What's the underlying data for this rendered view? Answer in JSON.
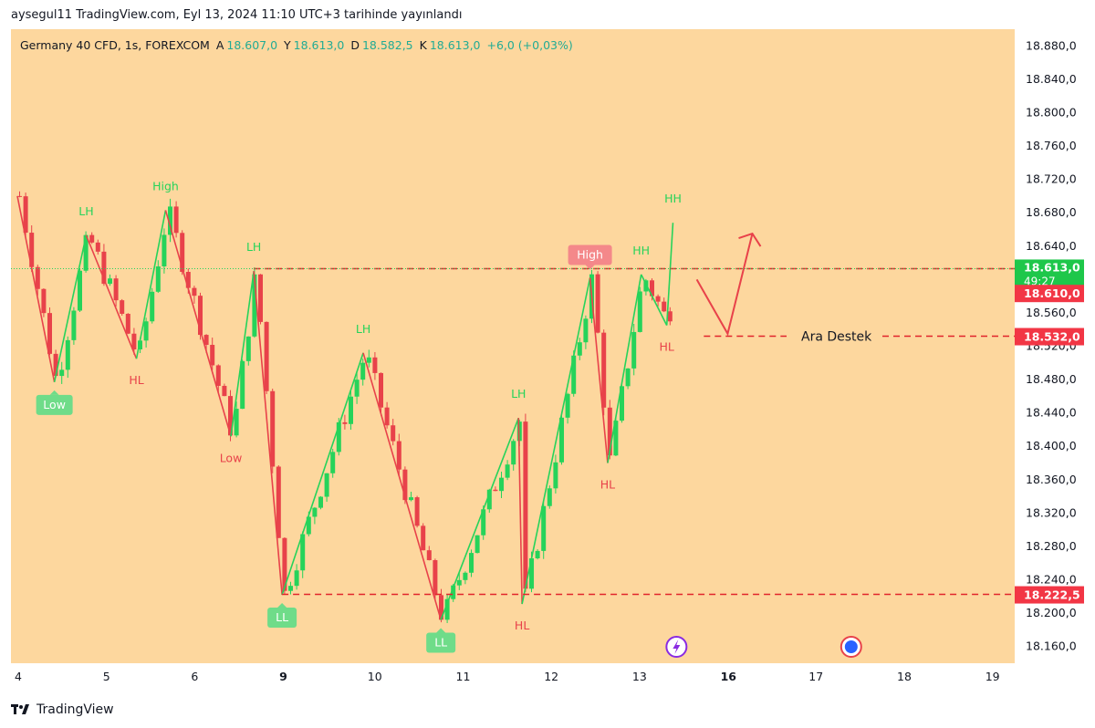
{
  "header": {
    "published": "aysegul11 TradingView.com, Eyl 13, 2024 11:10 UTC+3 tarihinde yayınlandı"
  },
  "legend": {
    "symbol": "Germany 40 CFD, 1s, FOREXCOM",
    "open_label": "A",
    "open": "18.607,0",
    "high_label": "Y",
    "high": "18.613,0",
    "low_label": "D",
    "low": "18.582,5",
    "close_label": "K",
    "close": "18.613,0",
    "change": "+6,0 (+0,03%)"
  },
  "footer": {
    "brand": "TradingView"
  },
  "colors": {
    "background": "#fdd79e",
    "up": "#26d35a",
    "down": "#e8424a",
    "grid_text": "#131722",
    "level_line": "#e0242b",
    "price_badge_green": "#1ec74a",
    "price_badge_red": "#f23645",
    "accent_purple": "#8a2be2",
    "accent_blue": "#2962ff"
  },
  "chart_data": {
    "type": "candlestick",
    "title": "Germany 40 CFD, 1s, FOREXCOM",
    "xlabel": "",
    "ylabel": "",
    "grid": false,
    "x_ticks": [
      "4",
      "5",
      "6",
      "9",
      "10",
      "11",
      "12",
      "13",
      "16",
      "17",
      "18",
      "19"
    ],
    "y_ticks": [
      "18.160,0",
      "18.200,0",
      "18.240,0",
      "18.280,0",
      "18.320,0",
      "18.360,0",
      "18.400,0",
      "18.440,0",
      "18.480,0",
      "18.520,0",
      "18.560,0",
      "18.600,0",
      "18.640,0",
      "18.680,0",
      "18.720,0",
      "18.760,0",
      "18.800,0",
      "18.840,0",
      "18.880,0"
    ],
    "ylim": [
      18140,
      18900
    ],
    "zigzag": [
      {
        "x": 0.0,
        "y": 18700,
        "c": "down"
      },
      {
        "x": 0.42,
        "y": 18477,
        "c": "up",
        "label": "Low",
        "tag": true
      },
      {
        "x": 0.78,
        "y": 18653,
        "c": "down",
        "label": "LH"
      },
      {
        "x": 1.35,
        "y": 18505,
        "c": "up",
        "label": "HL"
      },
      {
        "x": 1.68,
        "y": 18683,
        "c": "down",
        "label": "High"
      },
      {
        "x": 2.42,
        "y": 18412,
        "c": "up",
        "label": "Low"
      },
      {
        "x": 2.68,
        "y": 18610,
        "c": "down",
        "label": "LH"
      },
      {
        "x": 3.0,
        "y": 18222,
        "c": "up",
        "label": "LL",
        "tag": true
      },
      {
        "x": 3.92,
        "y": 18512,
        "c": "down",
        "label": "LH"
      },
      {
        "x": 4.8,
        "y": 18192,
        "c": "up",
        "label": "LL",
        "tag": true
      },
      {
        "x": 5.68,
        "y": 18434,
        "c": "down",
        "label": "LH"
      },
      {
        "x": 5.72,
        "y": 18211,
        "c": "up",
        "label": "HL"
      },
      {
        "x": 6.49,
        "y": 18602,
        "c": "down",
        "label": "High",
        "tag": true
      },
      {
        "x": 6.69,
        "y": 18380,
        "c": "up",
        "label": "HL"
      },
      {
        "x": 7.07,
        "y": 18606,
        "c": "up",
        "label": "HH"
      },
      {
        "x": 7.36,
        "y": 18545,
        "c": "up",
        "label": "HL"
      },
      {
        "x": 7.43,
        "y": 18668,
        "c": "up",
        "label": "HH"
      }
    ],
    "levels": [
      {
        "price": 18613,
        "label": "18.613,0",
        "sub": "49:27",
        "badge": "green",
        "from": 2.68
      },
      {
        "price": 18610,
        "label": "18.610,0",
        "badge": "red"
      },
      {
        "price": 18532,
        "label": "18.532,0",
        "badge": "red",
        "from": 7.78,
        "text": "Ara Destek"
      },
      {
        "price": 18222.5,
        "label": "18.222,5",
        "badge": "red",
        "from": 3.0
      }
    ],
    "projection": [
      {
        "x": 7.7,
        "y": 18600
      },
      {
        "x": 8.05,
        "y": 18535
      },
      {
        "x": 8.33,
        "y": 18655
      }
    ],
    "events": [
      {
        "x": 7.47,
        "type": "dividend-icon"
      },
      {
        "x": 9.45,
        "type": "economic-event-icon"
      }
    ]
  }
}
